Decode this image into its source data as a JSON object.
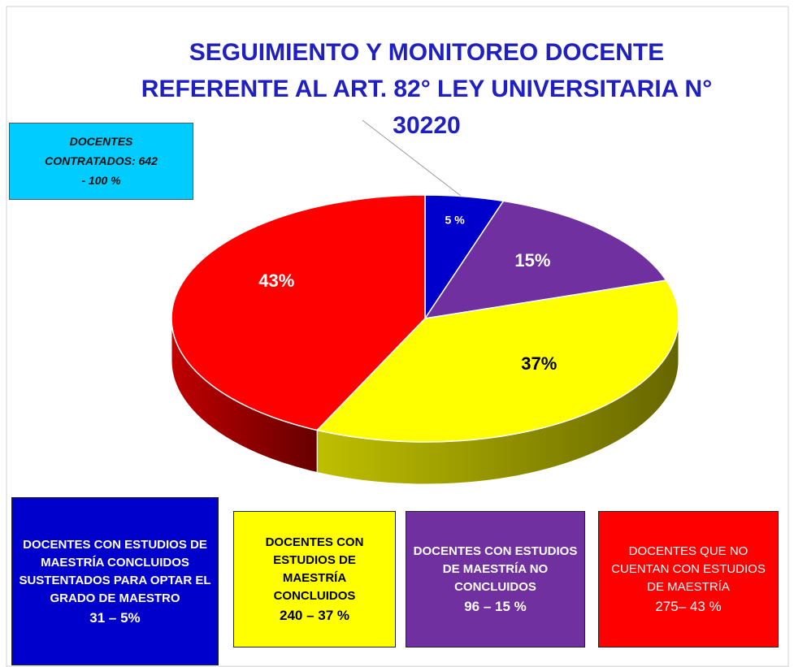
{
  "chart_data": {
    "type": "pie3d",
    "title": "SEGUIMIENTO Y MONITOREO DOCENTE REFERENTE AL ART. 82° LEY UNIVERSITARIA N° 30220",
    "note": "DOCENTES CONTRATADOS: 642  - 100 %",
    "categories": [
      "DOCENTES CON ESTUDIOS DE MAESTRÍA CONCLUIDOS SUSTENTADOS PARA OPTAR EL GRADO DE MAESTRO",
      "DOCENTES CON ESTUDIOS DE MAESTRÍA NO CONCLUIDOS",
      "DOCENTES CON ESTUDIOS DE MAESTRÍA CONCLUIDOS",
      "DOCENTES QUE NO CUENTAN CON ESTUDIOS DE MAESTRÍA"
    ],
    "values": [
      5,
      15,
      37,
      43
    ],
    "value_labels": [
      "5 %",
      "15%",
      "37%",
      "43%"
    ],
    "counts": [
      "31 – 5%",
      "96 – 15 %",
      "240 – 37 %",
      "275– 43 %"
    ],
    "colors": [
      "#0000cc",
      "#7030a0",
      "#ffff00",
      "#ff0000"
    ]
  }
}
